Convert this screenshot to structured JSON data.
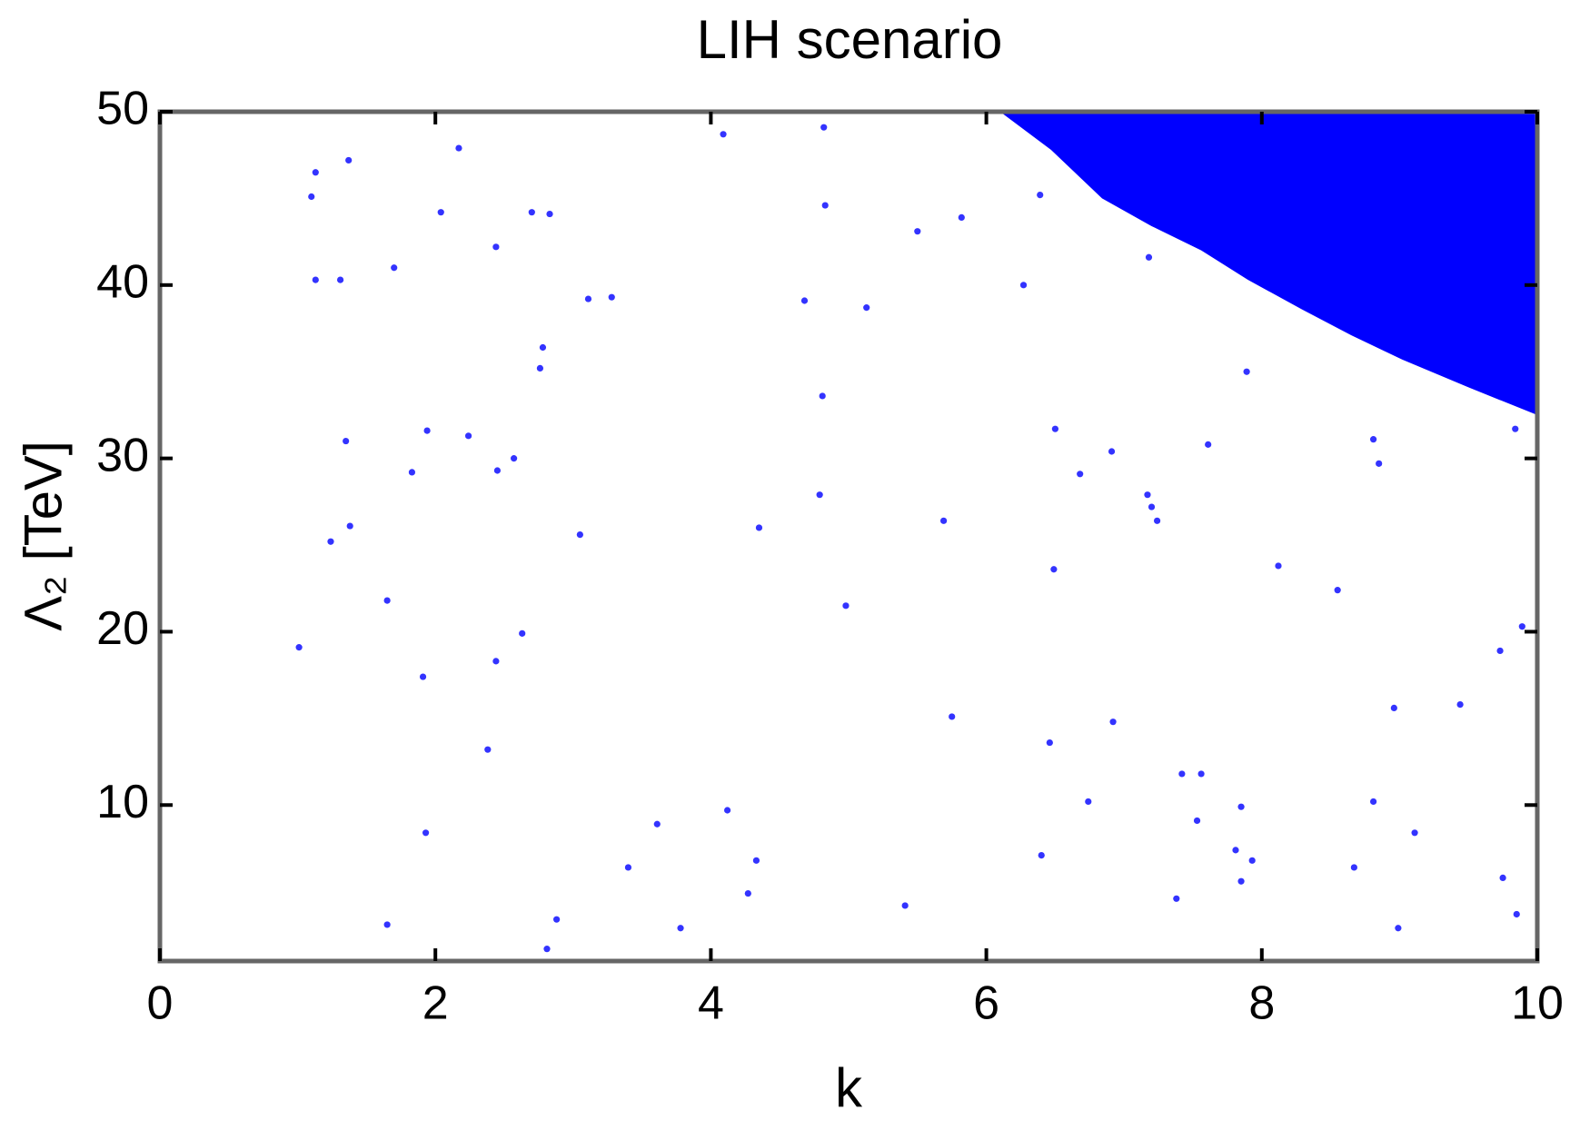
{
  "chart_data": {
    "type": "scatter",
    "title": "LIH scenario",
    "x_label": "k",
    "y_label": "Λ₂ [TeV]",
    "xlim": [
      0,
      10
    ],
    "ylim": [
      1,
      50
    ],
    "xticks": [
      0,
      2,
      4,
      6,
      8,
      10
    ],
    "yticks": [
      10,
      20,
      30,
      40,
      50
    ],
    "color": "#0000ff",
    "points": {
      "x": [
        1.01,
        1.1,
        1.13,
        1.13,
        1.31,
        1.37,
        1.35,
        1.38,
        1.24,
        1.65,
        1.7,
        1.83,
        1.91,
        1.94,
        1.93,
        1.65,
        2.04,
        2.17,
        2.24,
        2.44,
        2.45,
        2.44,
        2.38,
        2.57,
        2.63,
        2.7,
        2.83,
        2.78,
        2.76,
        2.88,
        2.81,
        3.05,
        3.11,
        3.28,
        3.4,
        3.61,
        3.78,
        4.09,
        4.12,
        4.27,
        4.33,
        4.35,
        4.68,
        4.79,
        4.81,
        4.82,
        4.83,
        4.98,
        5.13,
        5.41,
        5.5,
        5.69,
        5.75,
        5.82,
        6.27,
        6.39,
        6.4,
        6.46,
        6.49,
        6.5,
        6.68,
        6.74,
        6.91,
        6.92,
        7.17,
        7.2,
        7.24,
        7.18,
        7.38,
        7.42,
        7.53,
        7.56,
        7.61,
        7.81,
        7.85,
        7.85,
        7.89,
        7.93,
        8.12,
        8.55,
        8.67,
        8.81,
        8.81,
        8.85,
        8.96,
        8.99,
        9.11,
        9.44,
        9.73,
        9.75,
        9.84,
        9.85,
        9.89
      ],
      "y": [
        19.1,
        45.1,
        46.5,
        40.3,
        40.3,
        47.2,
        31.0,
        26.1,
        25.2,
        21.8,
        41.0,
        29.2,
        17.4,
        31.6,
        8.4,
        3.1,
        44.2,
        47.9,
        31.3,
        42.2,
        29.3,
        18.3,
        13.2,
        30.0,
        19.9,
        44.2,
        44.1,
        36.4,
        35.2,
        3.4,
        1.7,
        25.6,
        39.2,
        39.3,
        6.4,
        8.9,
        2.9,
        48.7,
        9.7,
        4.9,
        6.8,
        26.0,
        39.1,
        27.9,
        33.6,
        49.1,
        44.6,
        21.5,
        38.7,
        4.2,
        43.1,
        26.4,
        15.1,
        43.9,
        40.0,
        45.2,
        7.1,
        13.6,
        23.6,
        31.7,
        29.1,
        10.2,
        30.4,
        14.8,
        27.9,
        27.2,
        26.4,
        41.6,
        4.6,
        11.8,
        9.1,
        11.8,
        30.8,
        7.4,
        9.9,
        5.6,
        35.0,
        6.8,
        23.8,
        22.4,
        6.4,
        31.1,
        10.2,
        29.7,
        15.6,
        2.9,
        8.4,
        15.8,
        18.9,
        5.8,
        31.7,
        3.7,
        20.3
      ]
    },
    "region": {
      "x": [
        6.1,
        6.47,
        6.84,
        7.2,
        7.56,
        7.9,
        8.29,
        8.65,
        9.02,
        9.5,
        10,
        10
      ],
      "y": [
        50,
        47.8,
        45,
        43.4,
        42,
        40.3,
        38.6,
        37.1,
        35.7,
        34.1,
        32.5,
        50
      ]
    }
  }
}
